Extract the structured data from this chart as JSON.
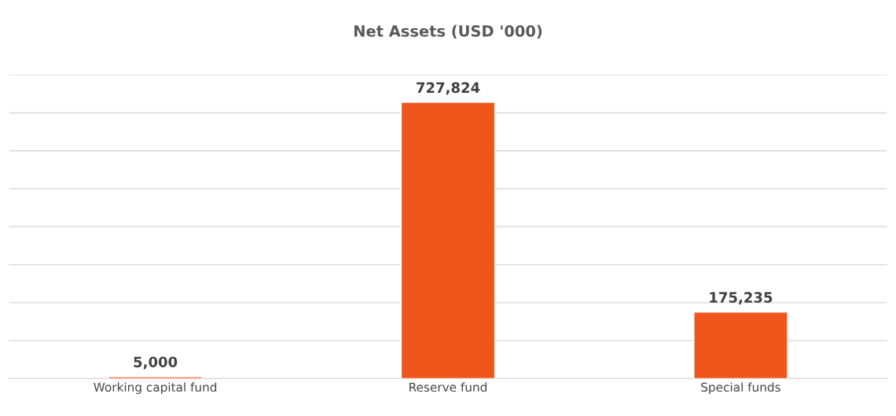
{
  "chart_data": {
    "type": "bar",
    "title": "Net Assets (USD '000)",
    "categories": [
      "Working capital fund",
      "Reserve fund",
      "Special funds"
    ],
    "values": [
      5000,
      727824,
      175235
    ],
    "color": "#f0561c",
    "ylim": [
      0,
      800000
    ],
    "yticks": [
      {
        "value": 0,
        "label": null
      },
      {
        "value": 100000,
        "label": null
      },
      {
        "value": 200000,
        "label": null
      },
      {
        "value": 300000,
        "label": null
      },
      {
        "value": 400000,
        "label": null
      },
      {
        "value": 500000,
        "label": null
      },
      {
        "value": 600000,
        "label": null
      },
      {
        "value": 700000,
        "label": null
      },
      {
        "value": 800000,
        "label": null
      }
    ],
    "grid": "y",
    "data_labels": true,
    "value_labels": [
      "5,000",
      "727,824",
      "175,235"
    ],
    "legend": false
  }
}
